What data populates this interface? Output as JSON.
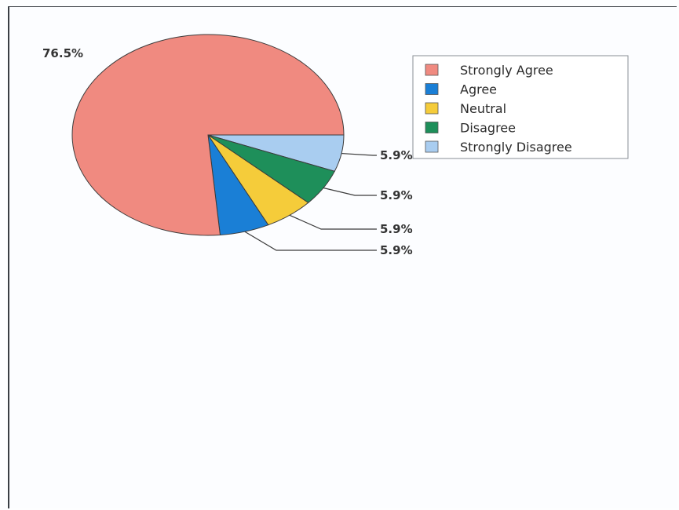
{
  "chart_data": {
    "type": "pie",
    "categories": [
      "Strongly Agree",
      "Agree",
      "Neutral",
      "Disagree",
      "Strongly Disagree"
    ],
    "values": [
      76.5,
      5.9,
      5.9,
      5.9,
      5.9
    ],
    "value_labels": [
      "76.5%",
      "5.9%",
      "5.9%",
      "5.9%",
      "5.9%"
    ],
    "colors": [
      "#f08a80",
      "#1a7fd6",
      "#f5cc3a",
      "#1e8f5a",
      "#a9cdf0"
    ],
    "legend_position": "top-right"
  }
}
